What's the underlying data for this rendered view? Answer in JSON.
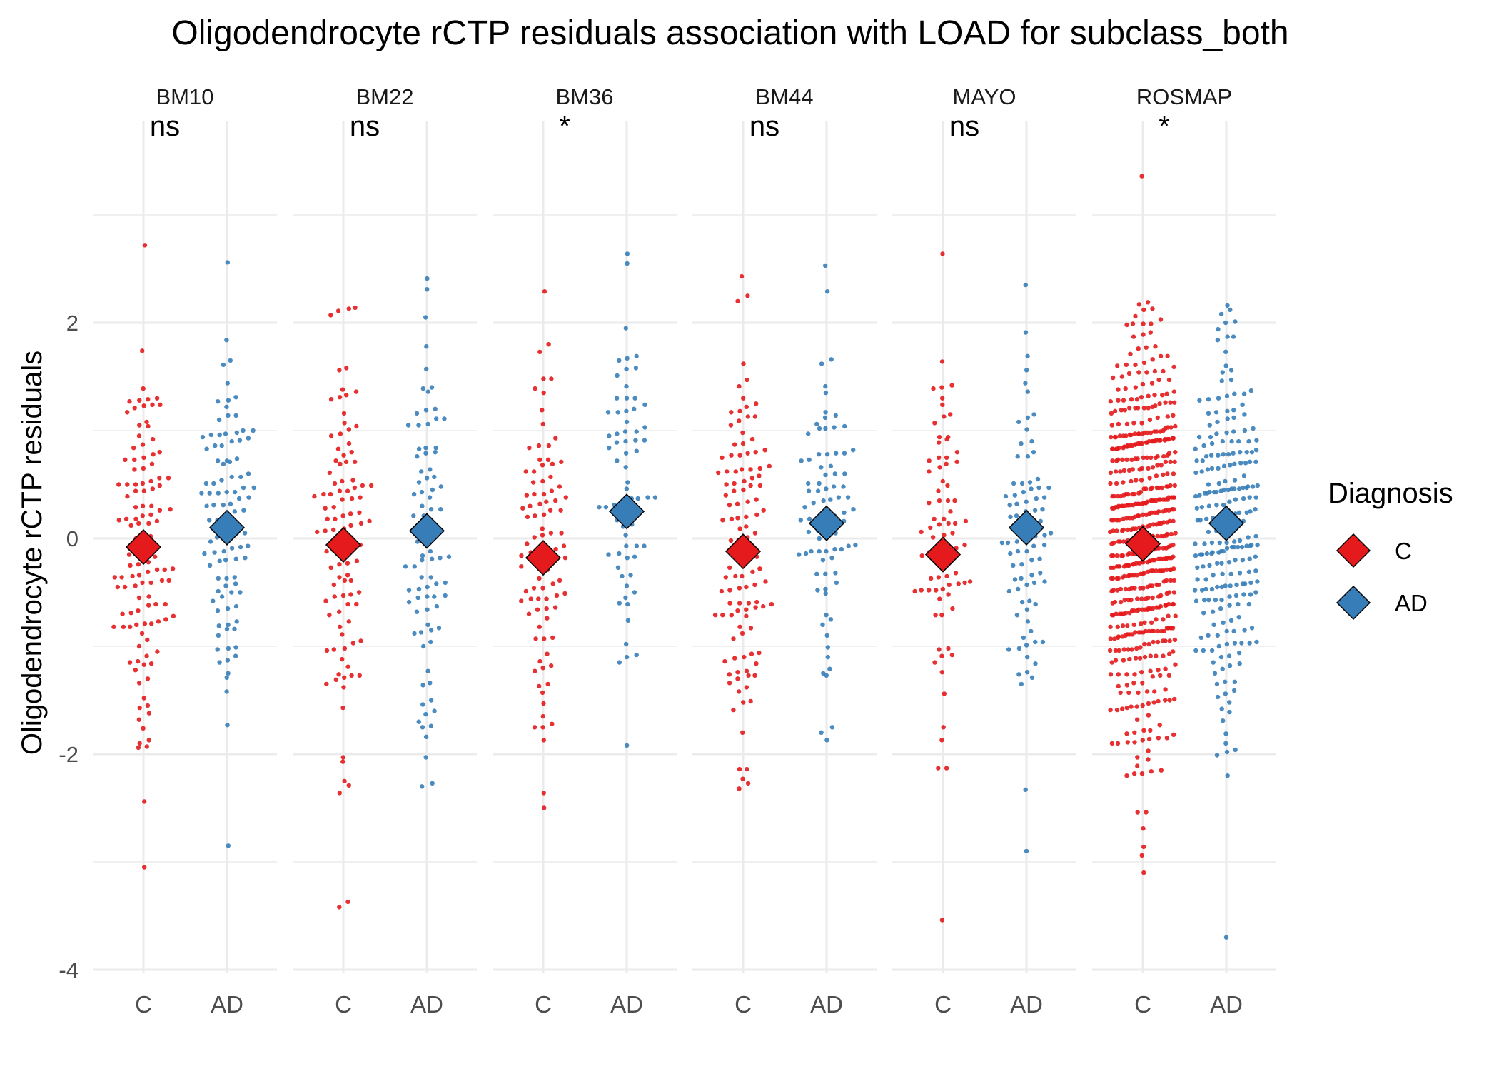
{
  "chart_data": {
    "type": "scatter",
    "title": "Oligodendrocyte rCTP residuals association with LOAD for subclass_both",
    "ylabel": "Oligodendrocyte rCTP residuals",
    "xlabel": "",
    "ylim": [
      -4,
      4.1
    ],
    "y_ticks": [
      "2",
      "0",
      "-2",
      "-4"
    ],
    "categories": [
      "C",
      "AD"
    ],
    "grid": true,
    "legend_position": "right",
    "legend": {
      "title": "Diagnosis",
      "entries": [
        {
          "label": "C",
          "color": "#e41a1c"
        },
        {
          "label": "AD",
          "color": "#377eb8"
        }
      ]
    },
    "colors": {
      "C": "#e41a1c",
      "AD": "#377eb8"
    },
    "panels": [
      {
        "name": "BM10",
        "significance": "ns",
        "n": {
          "C": 120,
          "AD": 100
        },
        "mean": {
          "C": -0.08,
          "AD": 0.1
        },
        "sd": {
          "C": 0.9,
          "AD": 0.8
        },
        "max": {
          "C": 2.72,
          "AD": 2.56
        },
        "min": {
          "C": -3.05,
          "AD": -2.85
        }
      },
      {
        "name": "BM22",
        "significance": "ns",
        "n": {
          "C": 105,
          "AD": 85
        },
        "mean": {
          "C": -0.06,
          "AD": 0.07
        },
        "sd": {
          "C": 0.95,
          "AD": 0.85
        },
        "max": {
          "C": 2.14,
          "AD": 2.41
        },
        "min": {
          "C": -3.42,
          "AD": -2.3
        }
      },
      {
        "name": "BM36",
        "significance": "*",
        "n": {
          "C": 95,
          "AD": 70
        },
        "mean": {
          "C": -0.18,
          "AD": 0.25
        },
        "sd": {
          "C": 0.85,
          "AD": 0.9
        },
        "max": {
          "C": 2.29,
          "AD": 2.64
        },
        "min": {
          "C": -2.5,
          "AD": -1.92
        }
      },
      {
        "name": "BM44",
        "significance": "ns",
        "n": {
          "C": 115,
          "AD": 85
        },
        "mean": {
          "C": -0.12,
          "AD": 0.14
        },
        "sd": {
          "C": 0.95,
          "AD": 0.8
        },
        "max": {
          "C": 2.43,
          "AD": 2.53
        },
        "min": {
          "C": -2.32,
          "AD": -1.87
        }
      },
      {
        "name": "MAYO",
        "significance": "ns",
        "n": {
          "C": 80,
          "AD": 85
        },
        "mean": {
          "C": -0.15,
          "AD": 0.1
        },
        "sd": {
          "C": 0.95,
          "AD": 0.85
        },
        "max": {
          "C": 2.64,
          "AD": 2.35
        },
        "min": {
          "C": -3.54,
          "AD": -2.9
        }
      },
      {
        "name": "ROSMAP",
        "significance": "*",
        "n": {
          "C": 560,
          "AD": 240
        },
        "mean": {
          "C": -0.05,
          "AD": 0.14
        },
        "sd": {
          "C": 0.95,
          "AD": 0.9
        },
        "max": {
          "C": 3.36,
          "AD": 2.16
        },
        "min": {
          "C": -3.1,
          "AD": -3.7
        }
      }
    ]
  }
}
